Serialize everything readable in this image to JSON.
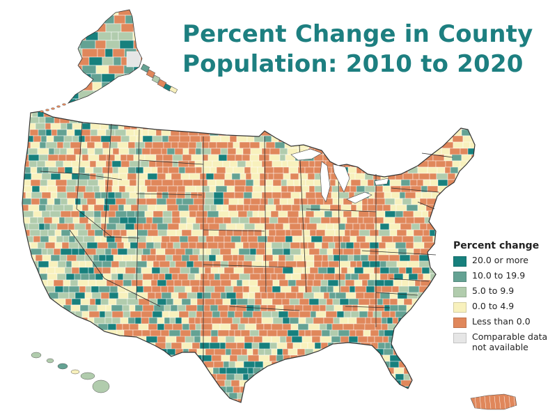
{
  "title": {
    "line1": "Percent Change in County",
    "line2": "Population: 2010 to 2020"
  },
  "colors": {
    "title": "#1d7f80",
    "state_border": "#222222",
    "county_border": "#ffffff"
  },
  "legend": {
    "title": "Percent change",
    "items": [
      {
        "label": "20.0 or more",
        "color": "#17807d"
      },
      {
        "label": "10.0 to 19.9",
        "color": "#64a293"
      },
      {
        "label": "5.0 to 9.9",
        "color": "#b1ccad"
      },
      {
        "label": "0.0 to 4.9",
        "color": "#f8f1bd"
      },
      {
        "label": "Less than 0.0",
        "color": "#e0875b"
      }
    ],
    "not_available": {
      "label_line1": "Comparable data",
      "label_line2": "not available",
      "color": "#e6e6e6"
    }
  }
}
